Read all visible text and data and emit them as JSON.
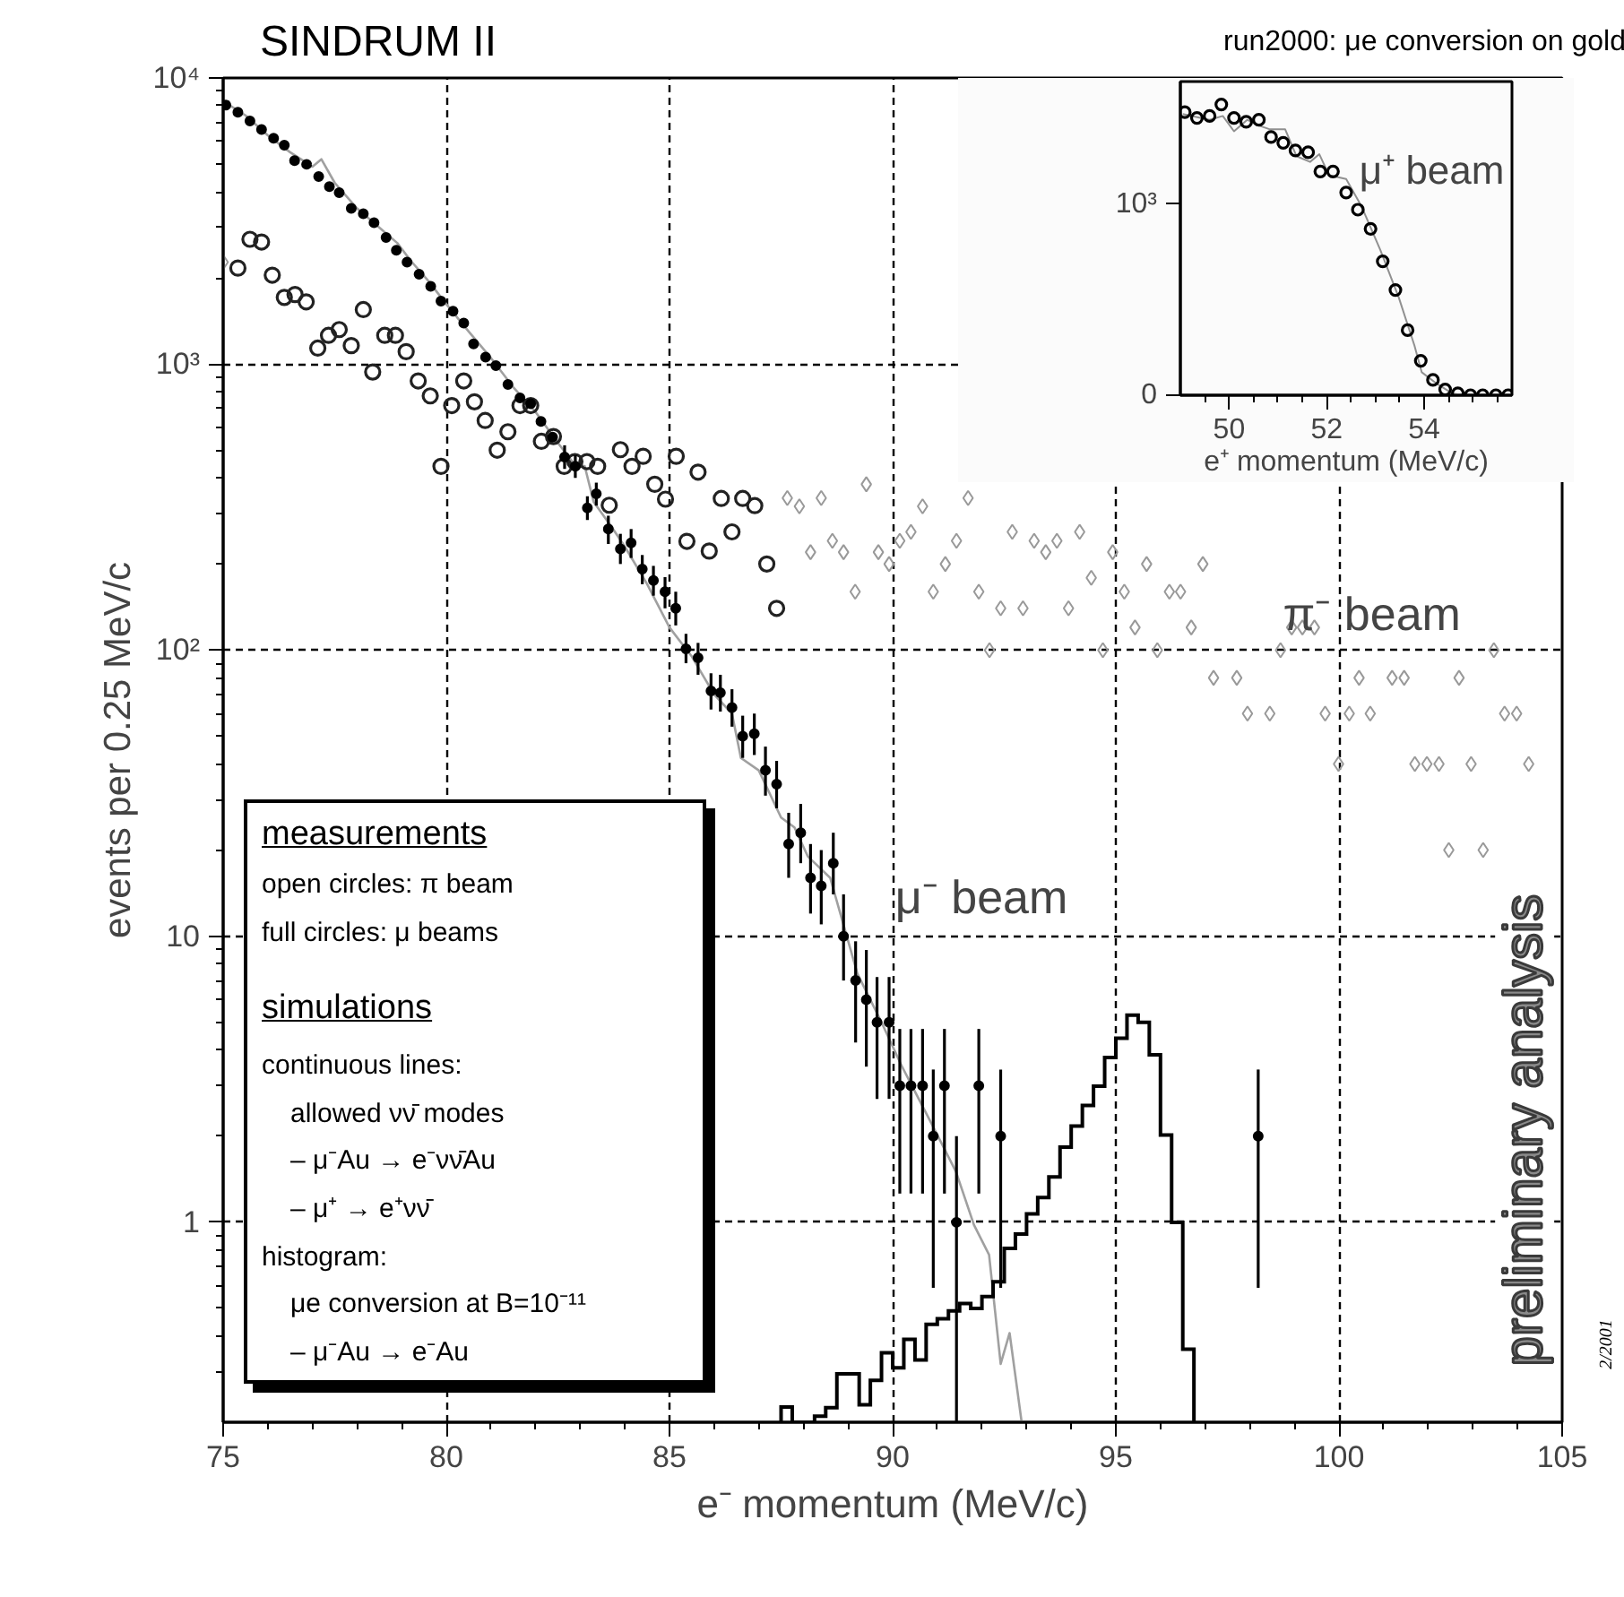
{
  "chart_data": [
    {
      "type": "scatter",
      "title": "SINDRUM II",
      "subtitle": "run2000: μe conversion on gold",
      "xlabel": "e⁻ momentum (MeV/c)",
      "ylabel": "events per 0.25 MeV/c",
      "xlim": [
        75,
        105
      ],
      "ylim": [
        0.2,
        10000
      ],
      "log": "y",
      "grid": true,
      "xticks": [
        75,
        {
          "value": 76,
          "label": null
        },
        {
          "value": 77,
          "label": null
        },
        {
          "value": 78,
          "label": null
        },
        {
          "value": 79,
          "label": null
        },
        80,
        {
          "value": 81,
          "label": null
        },
        {
          "value": 82,
          "label": null
        },
        {
          "value": 83,
          "label": null
        },
        {
          "value": 84,
          "label": null
        },
        85,
        {
          "value": 86,
          "label": null
        },
        {
          "value": 87,
          "label": null
        },
        {
          "value": 88,
          "label": null
        },
        {
          "value": 89,
          "label": null
        },
        90,
        {
          "value": 91,
          "label": null
        },
        {
          "value": 92,
          "label": null
        },
        {
          "value": 93,
          "label": null
        },
        {
          "value": 94,
          "label": null
        },
        95,
        {
          "value": 96,
          "label": null
        },
        {
          "value": 97,
          "label": null
        },
        {
          "value": 98,
          "label": null
        },
        {
          "value": 99,
          "label": null
        },
        100,
        {
          "value": 101,
          "label": null
        },
        {
          "value": 102,
          "label": null
        },
        {
          "value": 103,
          "label": null
        },
        {
          "value": 104,
          "label": null
        },
        105
      ],
      "yticks": [
        {
          "value": 0.3,
          "label": null
        },
        {
          "value": 0.4,
          "label": null
        },
        {
          "value": 0.5,
          "label": null
        },
        {
          "value": 0.6,
          "label": null
        },
        {
          "value": 0.7,
          "label": null
        },
        {
          "value": 0.8,
          "label": null
        },
        {
          "value": 0.9,
          "label": null
        },
        1,
        {
          "value": 2,
          "label": null
        },
        {
          "value": 3,
          "label": null
        },
        {
          "value": 4,
          "label": null
        },
        {
          "value": 5,
          "label": null
        },
        {
          "value": 6,
          "label": null
        },
        {
          "value": 7,
          "label": null
        },
        {
          "value": 8,
          "label": null
        },
        {
          "value": 9,
          "label": null
        },
        10,
        {
          "value": 20,
          "label": null
        },
        {
          "value": 30,
          "label": null
        },
        {
          "value": 40,
          "label": null
        },
        {
          "value": 50,
          "label": null
        },
        {
          "value": 60,
          "label": null
        },
        {
          "value": 70,
          "label": null
        },
        {
          "value": 80,
          "label": null
        },
        {
          "value": 90,
          "label": null
        },
        {
          "value": 100,
          "label": "10²"
        },
        {
          "value": 200,
          "label": null
        },
        {
          "value": 300,
          "label": null
        },
        {
          "value": 400,
          "label": null
        },
        {
          "value": 500,
          "label": null
        },
        {
          "value": 600,
          "label": null
        },
        {
          "value": 700,
          "label": null
        },
        {
          "value": 800,
          "label": null
        },
        {
          "value": 900,
          "label": null
        },
        {
          "value": 1000,
          "label": "10³"
        },
        {
          "value": 2000,
          "label": null
        },
        {
          "value": 3000,
          "label": null
        },
        {
          "value": 4000,
          "label": null
        },
        {
          "value": 5000,
          "label": null
        },
        {
          "value": 6000,
          "label": null
        },
        {
          "value": 7000,
          "label": null
        },
        {
          "value": 8000,
          "label": null
        },
        {
          "value": 9000,
          "label": null
        },
        {
          "value": 10000,
          "label": "10⁴"
        }
      ],
      "annotations": [
        "π⁻ beam",
        "μ⁻ beam",
        "measurements",
        "open circles:  π beam",
        "full circles:    μ beams",
        "simulations",
        "continuous lines:",
        "allowed νν̄ modes",
        "–  μ⁻Au → e⁻νν̄Au",
        "–  μ⁺ → e⁺νν̄",
        "histogram:",
        "μe conversion at B=10⁻¹¹",
        "–  μ⁻Au → e⁻Au",
        "preliminary analysis",
        "2/2001"
      ],
      "series": [
        {
          "type": "line",
          "color": "#a0a0a0",
          "x": [
            75.0,
            75.5,
            76,
            76.5,
            77,
            77.2,
            77.5,
            78,
            78.5,
            78.9,
            79.2,
            79.6,
            80,
            80.5,
            81,
            81.5,
            82,
            82.5,
            82.9,
            83.1,
            83.3,
            83.7,
            84,
            84.5,
            85,
            85.5,
            86,
            86.4,
            86.6,
            87,
            87.5,
            87.8,
            88.1,
            88.6,
            89.21,
            89.75,
            90.21,
            90.88,
            91.42,
            91.82,
            92.16,
            92.42,
            92.62,
            92.89
          ],
          "values": [
            8300,
            7400,
            6300,
            5500,
            4900,
            5200,
            4300,
            3500,
            3000,
            2650,
            2300,
            1950,
            1620,
            1300,
            1050,
            830,
            680,
            530,
            440,
            440,
            330,
            270,
            230,
            170,
            120,
            95,
            70,
            60,
            42,
            38,
            26,
            24,
            19,
            16,
            7.4,
            5.0,
            3.5,
            2.2,
            1.5,
            0.98,
            0.77,
            0.32,
            0.41,
            0.2
          ]
        },
        {
          "type": "histogram",
          "color": "#000000",
          "bins": [
            87.5,
            87.75,
            88,
            88.25,
            88.5,
            88.75,
            89,
            89.25,
            89.5,
            89.75,
            90,
            90.25,
            90.5,
            90.75,
            91,
            91.25,
            91.5,
            91.75,
            92,
            92.25,
            92.5,
            92.75,
            93,
            93.25,
            93.5,
            93.75,
            94,
            94.25,
            94.5,
            94.75,
            95,
            95.25,
            95.5,
            95.75,
            96,
            96.25,
            96.5,
            96.75
          ],
          "values": [
            0.226,
            null,
            null,
            0.21,
            0.225,
            0.295,
            0.295,
            0.23,
            0.28,
            0.35,
            0.31,
            0.39,
            0.33,
            0.44,
            0.46,
            0.49,
            0.52,
            0.5,
            0.55,
            0.62,
            0.81,
            0.91,
            1.07,
            1.22,
            1.44,
            1.83,
            2.17,
            2.56,
            2.99,
            3.77,
            4.4,
            5.3,
            5.0,
            3.85,
            2.02,
            1.0,
            0.36
          ]
        },
        {
          "color": "#999999",
          "marker": "diamond",
          "x": [
            75.0,
            87.64,
            87.91,
            88.16,
            88.4,
            88.65,
            88.9,
            89.16,
            89.41,
            89.68,
            89.92,
            90.16,
            90.41,
            90.67,
            90.91,
            91.18,
            91.43,
            91.69,
            91.93,
            92.17,
            92.42,
            92.68,
            92.92,
            93.17,
            93.43,
            93.68,
            93.94,
            94.19,
            94.45,
            94.71,
            94.93,
            95.19,
            95.43,
            95.69,
            95.93,
            96.2,
            96.45,
            96.69,
            96.95,
            97.19,
            97.71,
            97.95,
            98.45,
            98.69,
            98.94,
            99.18,
            99.45,
            99.69,
            99.99,
            100.23,
            100.45,
            100.7,
            101.19,
            101.46,
            101.7,
            101.97,
            102.24,
            102.46,
            102.69,
            102.96,
            103.23,
            103.47,
            103.71,
            103.98,
            104.25
          ],
          "values": [
            2270,
            340,
            318,
            220,
            340,
            241,
            220,
            160,
            380,
            220,
            200,
            241,
            259,
            318,
            160,
            200,
            241,
            340,
            160,
            100,
            140,
            259,
            140,
            241,
            220,
            241,
            140,
            259,
            179,
            100,
            220,
            160,
            120,
            200,
            100,
            160,
            160,
            120,
            200,
            80,
            80,
            60,
            60,
            100,
            120,
            120,
            120,
            60,
            40,
            60,
            80,
            60,
            80,
            80,
            40,
            40,
            40,
            20,
            80,
            40,
            20,
            100,
            60,
            60,
            40
          ]
        },
        {
          "color": "#222222",
          "marker": "circle",
          "x": [
            75.33,
            75.6,
            75.86,
            76.1,
            76.37,
            76.61,
            76.86,
            77.12,
            77.36,
            77.6,
            77.87,
            78.14,
            78.35,
            78.62,
            78.86,
            79.1,
            79.37,
            79.64,
            79.88,
            80.12,
            80.39,
            80.63,
            80.87,
            81.14,
            81.38,
            81.65,
            81.89,
            82.13,
            82.4,
            82.64,
            82.88,
            83.15,
            83.39,
            83.65,
            83.9,
            84.16,
            84.41,
            84.67,
            84.91,
            85.15,
            85.39,
            85.64,
            85.89,
            86.16,
            86.4,
            86.64,
            86.91,
            87.18,
            87.4
          ],
          "values": [
            2165,
            2730,
            2670,
            2045,
            1710,
            1750,
            1650,
            1137,
            1260,
            1320,
            1160,
            1550,
            938,
            1260,
            1260,
            1105,
            873,
            774,
            439,
            716,
            873,
            738,
            635,
            500,
            580,
            716,
            716,
            537,
            558,
            439,
            456,
            456,
            439,
            321,
            502,
            439,
            476,
            380,
            337,
            476,
            240,
            419,
            222,
            339,
            259,
            339,
            320,
            200,
            140
          ]
        },
        {
          "color": "#000000",
          "marker": "circle",
          "x": [
            75.06,
            75.33,
            75.6,
            75.86,
            76.13,
            76.37,
            76.6,
            76.87,
            77.14,
            77.38,
            77.6,
            77.87,
            78.14,
            78.38,
            78.65,
            78.88,
            79.12,
            79.39,
            79.65,
            79.88,
            80.15,
            80.39,
            80.61,
            80.88,
            81.11,
            81.38,
            81.65,
            81.89,
            82.12,
            82.38,
            82.65,
            82.89,
            83.16,
            83.36,
            83.63,
            83.9,
            84.14,
            84.39,
            84.64,
            84.9,
            85.14,
            85.37,
            85.64,
            85.93,
            86.14,
            86.4,
            86.64,
            86.9,
            87.15,
            87.4,
            87.67,
            87.94,
            88.16,
            88.4,
            88.67,
            88.9,
            89.17,
            89.41,
            89.65,
            89.92,
            90.16,
            90.41,
            90.67,
            90.91,
            91.16,
            91.43,
            91.93,
            92.42,
            98.19
          ],
          "values": [
            8040,
            7590,
            7070,
            6600,
            6160,
            5820,
            5140,
            4990,
            4520,
            4170,
            3970,
            3500,
            3350,
            3120,
            2770,
            2500,
            2270,
            2060,
            1870,
            1660,
            1530,
            1390,
            1176,
            1057,
            988,
            849,
            762,
            727,
            630,
            555,
            473,
            439,
            314,
            352,
            265,
            226,
            237,
            192,
            175,
            160,
            140,
            101,
            94,
            72,
            71,
            63,
            50,
            51,
            38,
            34,
            21,
            23,
            16,
            15,
            18,
            10,
            7,
            6,
            5,
            5,
            3,
            3,
            3,
            2,
            3,
            1,
            3,
            2,
            2
          ],
          "errors": [
            null,
            null,
            null,
            null,
            null,
            null,
            null,
            null,
            null,
            null,
            null,
            null,
            null,
            null,
            null,
            null,
            null,
            null,
            null,
            null,
            null,
            null,
            null,
            null,
            null,
            null,
            null,
            null,
            null,
            null,
            [
              430,
              520
            ],
            [
              400,
              480
            ],
            [
              285,
              345
            ],
            [
              320,
              385
            ],
            [
              235,
              295
            ],
            [
              200,
              255
            ],
            [
              210,
              265
            ],
            [
              170,
              215
            ],
            [
              155,
              197
            ],
            [
              140,
              180
            ],
            [
              122,
              160
            ],
            [
              90,
              114
            ],
            [
              82,
              106
            ],
            [
              62,
              83
            ],
            [
              61,
              82
            ],
            [
              54,
              73
            ],
            [
              42,
              59
            ],
            [
              43,
              60
            ],
            [
              31,
              46
            ],
            [
              28,
              41
            ],
            [
              16,
              27
            ],
            [
              18,
              29
            ],
            [
              12,
              21
            ],
            [
              11,
              20
            ],
            [
              14,
              23
            ],
            [
              7,
              14
            ],
            [
              4.25,
              9.6
            ],
            [
              3.5,
              8.95
            ],
            [
              2.7,
              7.2
            ],
            [
              2.7,
              7.2
            ],
            [
              1.26,
              4.74
            ],
            [
              1.26,
              4.74
            ],
            [
              1.26,
              4.74
            ],
            [
              0.59,
              3.42
            ],
            [
              1.26,
              4.74
            ],
            [
              0.2,
              2.0
            ],
            [
              1.26,
              4.74
            ],
            [
              0.59,
              3.42
            ],
            [
              0.59,
              3.42
            ]
          ]
        }
      ]
    },
    {
      "type": "scatter",
      "xlabel": "e⁺ momentum (MeV/c)",
      "xlim": [
        49,
        55.8
      ],
      "ylim": [
        0,
        1640
      ],
      "xticks": [
        {
          "value": 49.5,
          "label": null
        },
        50,
        {
          "value": 50.5,
          "label": null
        },
        {
          "value": 51,
          "label": null
        },
        {
          "value": 51.5,
          "label": null
        },
        52,
        {
          "value": 52.5,
          "label": null
        },
        {
          "value": 53,
          "label": null
        },
        {
          "value": 53.5,
          "label": null
        },
        54,
        {
          "value": 54.5,
          "label": null
        },
        {
          "value": 55,
          "label": null
        },
        {
          "value": 55.5,
          "label": null
        }
      ],
      "yticks": [
        0,
        {
          "value": 1000,
          "label": "10³"
        }
      ],
      "annotations": [
        "μ⁺ beam"
      ],
      "series": [
        {
          "type": "line",
          "color": "#909090",
          "x": [
            49.05,
            49.6,
            49.87,
            50.1,
            50.37,
            50.61,
            50.84,
            51.15,
            51.38,
            51.66,
            51.85,
            52.05,
            52.4,
            52.71,
            53.1,
            53.48,
            53.8,
            53.95,
            54.26,
            54.57,
            54.8
          ],
          "values": [
            1470,
            1440,
            1460,
            1380,
            1440,
            1410,
            1390,
            1390,
            1250,
            1220,
            1260,
            1150,
            1130,
            990,
            760,
            510,
            260,
            120,
            60,
            10,
            0
          ]
        },
        {
          "color": "#000000",
          "marker": "circle",
          "x": [
            49.09,
            49.34,
            49.6,
            49.84,
            50.1,
            50.35,
            50.61,
            50.86,
            51.11,
            51.36,
            51.62,
            51.87,
            52.13,
            52.4,
            52.64,
            52.9,
            53.15,
            53.41,
            53.66,
            53.93,
            54.18,
            54.43,
            54.69,
            54.95,
            55.2,
            55.47,
            55.72
          ],
          "values": [
            1480,
            1450,
            1460,
            1520,
            1450,
            1430,
            1440,
            1350,
            1320,
            1280,
            1270,
            1170,
            1170,
            1060,
            970,
            870,
            700,
            550,
            340,
            180,
            80,
            30,
            10,
            0,
            0,
            0,
            0
          ]
        }
      ]
    }
  ]
}
